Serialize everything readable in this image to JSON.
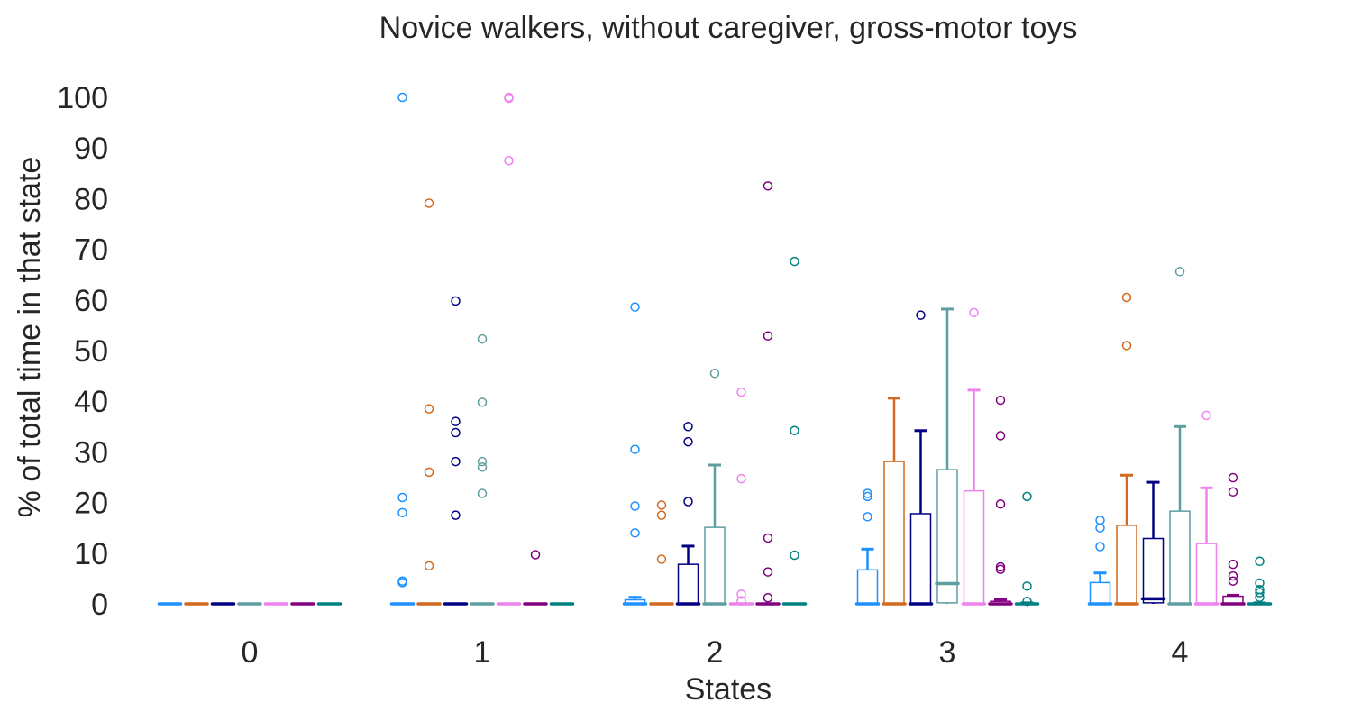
{
  "chart_data": {
    "type": "box",
    "title": "Novice walkers, without caregiver, gross-motor toys",
    "xlabel": "States",
    "ylabel": "% of total time in that state",
    "categories": [
      "0",
      "1",
      "2",
      "3",
      "4"
    ],
    "y_ticks": [
      0,
      10,
      20,
      30,
      40,
      50,
      60,
      70,
      80,
      90,
      100
    ],
    "ylim": [
      -4,
      103
    ],
    "grid": false,
    "legend": "none",
    "series": [
      {
        "color": "#1e90ff",
        "boxes": [
          {
            "q1": 0,
            "median": 0,
            "q3": 0,
            "whisker_low": 0,
            "whisker_high": 0,
            "outliers": []
          },
          {
            "q1": 0,
            "median": 0,
            "q3": 0,
            "whisker_low": 0,
            "whisker_high": 0,
            "outliers": [
              100,
              21,
              18,
              4.5,
              4.2
            ]
          },
          {
            "q1": 0,
            "median": 0,
            "q3": 0.8,
            "whisker_low": 0,
            "whisker_high": 1.3,
            "outliers": [
              58.6,
              30.5,
              19.3,
              14
            ]
          },
          {
            "q1": 0,
            "median": 0,
            "q3": 6.7,
            "whisker_low": 0,
            "whisker_high": 10.8,
            "outliers": [
              21.8,
              21.2,
              17.2
            ]
          },
          {
            "q1": 0,
            "median": 0,
            "q3": 4.2,
            "whisker_low": 0,
            "whisker_high": 6.1,
            "outliers": [
              16.5,
              15,
              11.3
            ]
          }
        ]
      },
      {
        "color": "#d2691e",
        "boxes": [
          {
            "q1": 0,
            "median": 0,
            "q3": 0,
            "whisker_low": 0,
            "whisker_high": 0,
            "outliers": []
          },
          {
            "q1": 0,
            "median": 0,
            "q3": 0,
            "whisker_low": 0,
            "whisker_high": 0,
            "outliers": [
              79.1,
              38.5,
              26,
              7.5
            ]
          },
          {
            "q1": 0,
            "median": 0,
            "q3": 0,
            "whisker_low": 0,
            "whisker_high": 0,
            "outliers": [
              19.5,
              17.5,
              8.8
            ]
          },
          {
            "q1": 0,
            "median": 0,
            "q3": 28.1,
            "whisker_low": 0,
            "whisker_high": 40.6,
            "outliers": []
          },
          {
            "q1": 0,
            "median": 0,
            "q3": 15.5,
            "whisker_low": 0,
            "whisker_high": 25.4,
            "outliers": [
              60.5,
              51
            ]
          }
        ]
      },
      {
        "color": "#000080",
        "boxes": [
          {
            "q1": 0,
            "median": 0,
            "q3": 0,
            "whisker_low": 0,
            "whisker_high": 0,
            "outliers": []
          },
          {
            "q1": 0,
            "median": 0,
            "q3": 0,
            "whisker_low": 0,
            "whisker_high": 0,
            "outliers": [
              59.8,
              36,
              33.8,
              28.1,
              17.5
            ]
          },
          {
            "q1": 0,
            "median": 0,
            "q3": 7.8,
            "whisker_low": 0,
            "whisker_high": 11.4,
            "outliers": [
              35,
              32,
              20.2
            ]
          },
          {
            "q1": 0,
            "median": 0,
            "q3": 17.8,
            "whisker_low": 0,
            "whisker_high": 34.2,
            "outliers": [
              57
            ]
          },
          {
            "q1": 0.2,
            "median": 1,
            "q3": 12.9,
            "whisker_low": 0,
            "whisker_high": 24,
            "outliers": []
          }
        ]
      },
      {
        "color": "#5f9ea0",
        "boxes": [
          {
            "q1": 0,
            "median": 0,
            "q3": 0,
            "whisker_low": 0,
            "whisker_high": 0,
            "outliers": []
          },
          {
            "q1": 0,
            "median": 0,
            "q3": 0,
            "whisker_low": 0,
            "whisker_high": 0,
            "outliers": [
              52.3,
              39.8,
              28.1,
              27,
              21.8
            ]
          },
          {
            "q1": 0,
            "median": 0,
            "q3": 15.1,
            "whisker_low": 0,
            "whisker_high": 27.4,
            "outliers": [
              45.5
            ]
          },
          {
            "q1": 0.2,
            "median": 4,
            "q3": 26.5,
            "whisker_low": 0,
            "whisker_high": 58.2,
            "outliers": []
          },
          {
            "q1": 0,
            "median": 0,
            "q3": 18.3,
            "whisker_low": 0,
            "whisker_high": 35,
            "outliers": [
              65.6
            ]
          }
        ]
      },
      {
        "color": "#ee82ee",
        "boxes": [
          {
            "q1": 0,
            "median": 0,
            "q3": 0,
            "whisker_low": 0,
            "whisker_high": 0,
            "outliers": []
          },
          {
            "q1": 0,
            "median": 0,
            "q3": 0,
            "whisker_low": 0,
            "whisker_high": 0,
            "outliers": [
              100,
              99.8,
              87.5
            ]
          },
          {
            "q1": 0,
            "median": 0,
            "q3": 0,
            "whisker_low": 0,
            "whisker_high": 0,
            "outliers": [
              41.8,
              24.7,
              1.9,
              0.6
            ]
          },
          {
            "q1": 0,
            "median": 0,
            "q3": 22.3,
            "whisker_low": 0,
            "whisker_high": 42.2,
            "outliers": [
              57.5
            ]
          },
          {
            "q1": 0,
            "median": 0,
            "q3": 11.9,
            "whisker_low": 0,
            "whisker_high": 22.9,
            "outliers": [
              37.2
            ]
          }
        ]
      },
      {
        "color": "#800080",
        "boxes": [
          {
            "q1": 0,
            "median": 0,
            "q3": 0,
            "whisker_low": 0,
            "whisker_high": 0,
            "outliers": []
          },
          {
            "q1": 0,
            "median": 0,
            "q3": 0,
            "whisker_low": 0,
            "whisker_high": 0,
            "outliers": [
              9.7
            ]
          },
          {
            "q1": 0,
            "median": 0,
            "q3": 0,
            "whisker_low": 0,
            "whisker_high": 0,
            "outliers": [
              82.5,
              52.9,
              13,
              6.3,
              1.2
            ]
          },
          {
            "q1": 0,
            "median": 0,
            "q3": 0.5,
            "whisker_low": 0,
            "whisker_high": 0.9,
            "outliers": [
              40.2,
              33.2,
              19.7,
              7.3,
              6.8
            ]
          },
          {
            "q1": 0,
            "median": 0,
            "q3": 1.5,
            "whisker_low": 0,
            "whisker_high": 1.7,
            "outliers": [
              24.9,
              22.1,
              7.8,
              5.5,
              4.5
            ]
          }
        ]
      },
      {
        "color": "#008080",
        "boxes": [
          {
            "q1": 0,
            "median": 0,
            "q3": 0,
            "whisker_low": 0,
            "whisker_high": 0,
            "outliers": []
          },
          {
            "q1": 0,
            "median": 0,
            "q3": 0,
            "whisker_low": 0,
            "whisker_high": 0,
            "outliers": []
          },
          {
            "q1": 0,
            "median": 0,
            "q3": 0,
            "whisker_low": 0,
            "whisker_high": 0,
            "outliers": [
              67.6,
              34.2,
              9.6
            ]
          },
          {
            "q1": 0,
            "median": 0,
            "q3": 0.1,
            "whisker_low": 0,
            "whisker_high": 0.2,
            "outliers": [
              21.2,
              3.5,
              0.5
            ]
          },
          {
            "q1": 0,
            "median": 0,
            "q3": 0.1,
            "whisker_low": 0,
            "whisker_high": 0.2,
            "outliers": [
              8.4,
              4.1,
              2.8,
              2.2,
              1.3
            ]
          }
        ]
      }
    ]
  }
}
